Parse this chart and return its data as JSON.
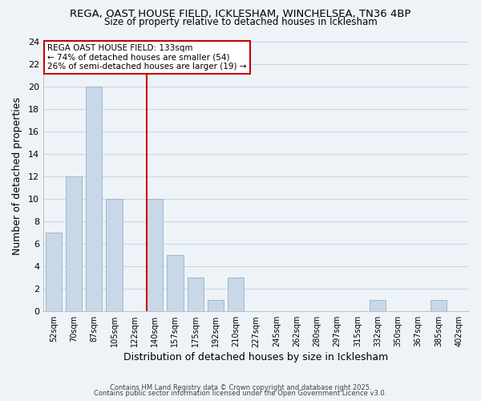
{
  "title_line1": "REGA, OAST HOUSE FIELD, ICKLESHAM, WINCHELSEA, TN36 4BP",
  "title_line2": "Size of property relative to detached houses in Icklesham",
  "xlabel": "Distribution of detached houses by size in Icklesham",
  "ylabel": "Number of detached properties",
  "bar_labels": [
    "52sqm",
    "70sqm",
    "87sqm",
    "105sqm",
    "122sqm",
    "140sqm",
    "157sqm",
    "175sqm",
    "192sqm",
    "210sqm",
    "227sqm",
    "245sqm",
    "262sqm",
    "280sqm",
    "297sqm",
    "315sqm",
    "332sqm",
    "350sqm",
    "367sqm",
    "385sqm",
    "402sqm"
  ],
  "bar_values": [
    7,
    12,
    20,
    10,
    0,
    10,
    5,
    3,
    1,
    3,
    0,
    0,
    0,
    0,
    0,
    0,
    1,
    0,
    0,
    1,
    0
  ],
  "bar_color": "#c8d8e8",
  "bar_edge_color": "#a0b8cc",
  "vline_idx": 5,
  "vline_color": "#cc0000",
  "annotation_title": "REGA OAST HOUSE FIELD: 133sqm",
  "annotation_line2": "← 74% of detached houses are smaller (54)",
  "annotation_line3": "26% of semi-detached houses are larger (19) →",
  "annotation_box_color": "#ffffff",
  "annotation_box_edge": "#cc0000",
  "ylim": [
    0,
    24
  ],
  "yticks": [
    0,
    2,
    4,
    6,
    8,
    10,
    12,
    14,
    16,
    18,
    20,
    22,
    24
  ],
  "grid_color": "#c8d8e8",
  "background_color": "#eef3f8",
  "footer_line1": "Contains HM Land Registry data © Crown copyright and database right 2025.",
  "footer_line2": "Contains public sector information licensed under the Open Government Licence v3.0."
}
